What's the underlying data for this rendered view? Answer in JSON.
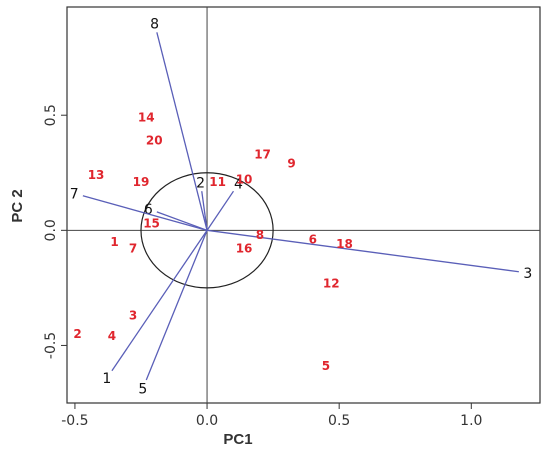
{
  "chart_data": {
    "type": "scatter",
    "subtype": "biplot",
    "title": "",
    "xlabel": "PC1",
    "ylabel": "PC 2",
    "xlim": [
      -0.53,
      1.26
    ],
    "ylim": [
      -0.75,
      0.97
    ],
    "xticks": [
      -0.5,
      0.0,
      0.5,
      1.0
    ],
    "yticks": [
      -0.5,
      0.0,
      0.5
    ],
    "xtick_labels": [
      "-0.5",
      "0.0",
      "0.5",
      "1.0"
    ],
    "ytick_labels": [
      "-0.5",
      "0.0",
      "0.5"
    ],
    "grid": false,
    "reference_lines": {
      "x": 0,
      "y": 0
    },
    "circle": {
      "center": [
        0,
        0
      ],
      "radius": 0.25
    },
    "colors": {
      "points": "#e0262e",
      "arrows": "#5a5fb8",
      "frame": "#333333",
      "ref_lines": "#444444"
    },
    "points": [
      {
        "label": "1",
        "x": -0.35,
        "y": -0.05
      },
      {
        "label": "2",
        "x": -0.49,
        "y": -0.45
      },
      {
        "label": "3",
        "x": -0.28,
        "y": -0.37
      },
      {
        "label": "4",
        "x": -0.36,
        "y": -0.46
      },
      {
        "label": "5",
        "x": 0.45,
        "y": -0.59
      },
      {
        "label": "6",
        "x": 0.4,
        "y": -0.04
      },
      {
        "label": "7",
        "x": -0.28,
        "y": -0.08
      },
      {
        "label": "8",
        "x": 0.2,
        "y": -0.02
      },
      {
        "label": "9",
        "x": 0.32,
        "y": 0.29
      },
      {
        "label": "10",
        "x": 0.14,
        "y": 0.22
      },
      {
        "label": "11",
        "x": 0.04,
        "y": 0.21
      },
      {
        "label": "12",
        "x": 0.47,
        "y": -0.23
      },
      {
        "label": "13",
        "x": -0.42,
        "y": 0.24
      },
      {
        "label": "14",
        "x": -0.23,
        "y": 0.49
      },
      {
        "label": "15",
        "x": -0.21,
        "y": 0.03
      },
      {
        "label": "16",
        "x": 0.14,
        "y": -0.08
      },
      {
        "label": "17",
        "x": 0.21,
        "y": 0.33
      },
      {
        "label": "18",
        "x": 0.52,
        "y": -0.06
      },
      {
        "label": "19",
        "x": -0.25,
        "y": 0.21
      },
      {
        "label": "20",
        "x": -0.2,
        "y": 0.39
      }
    ],
    "vectors": [
      {
        "label": "1",
        "x": -0.36,
        "y": -0.61
      },
      {
        "label": "2",
        "x": -0.02,
        "y": 0.17
      },
      {
        "label": "3",
        "x": 1.18,
        "y": -0.18
      },
      {
        "label": "4",
        "x": 0.1,
        "y": 0.17
      },
      {
        "label": "5",
        "x": -0.23,
        "y": -0.65
      },
      {
        "label": "6",
        "x": -0.19,
        "y": 0.08
      },
      {
        "label": "7",
        "x": -0.47,
        "y": 0.15
      },
      {
        "label": "8",
        "x": -0.19,
        "y": 0.86
      }
    ]
  }
}
